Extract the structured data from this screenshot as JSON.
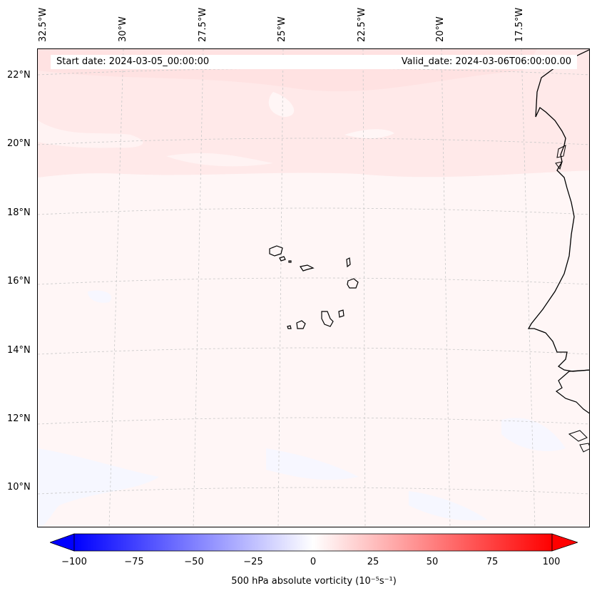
{
  "map": {
    "region": "Cabo Verde / West African coast",
    "field": "500 hPa absolute vorticity",
    "projection": "Lambert conformal (curved graticule)",
    "start_date": "Start date: 2024-03-05_00:00:00",
    "valid_date": "Valid_date: 2024-03-06T06:00:00.00",
    "lon_labels": [
      "32.5°W",
      "30°W",
      "27.5°W",
      "25°W",
      "22.5°W",
      "20°W",
      "17.5°W"
    ],
    "lat_labels": [
      "22°N",
      "20°N",
      "18°N",
      "16°N",
      "14°N",
      "12°N",
      "10°N"
    ],
    "gridlines": "dashed light gray",
    "coastline_color": "#000000",
    "colors": {
      "background_weak_positive": "#fff5f5",
      "positive_band": "#ffe6e6",
      "negative_patch": "#f5f7ff"
    }
  },
  "colorbar": {
    "cmap": "bwr",
    "range": [
      -100,
      100
    ],
    "extend": "both",
    "ticks": [
      "−100",
      "−75",
      "−50",
      "−25",
      "0",
      "25",
      "50",
      "75",
      "100"
    ],
    "label": "500 hPa absolute vorticity (10⁻⁵s⁻¹)",
    "low_color": "#0000ff",
    "mid_color": "#ffffff",
    "high_color": "#ff0000"
  }
}
